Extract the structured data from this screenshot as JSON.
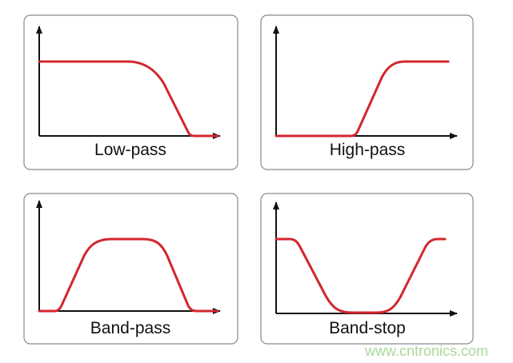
{
  "panels": [
    {
      "label": "Low-pass"
    },
    {
      "label": "High-pass"
    },
    {
      "label": "Band-pass"
    },
    {
      "label": "Band-stop"
    }
  ],
  "watermark": "www.cntronics.com",
  "colors": {
    "curve": "#d3262f",
    "axis": "#111111",
    "border": "#8a8a8a",
    "watermark": "#a9d89a"
  }
}
